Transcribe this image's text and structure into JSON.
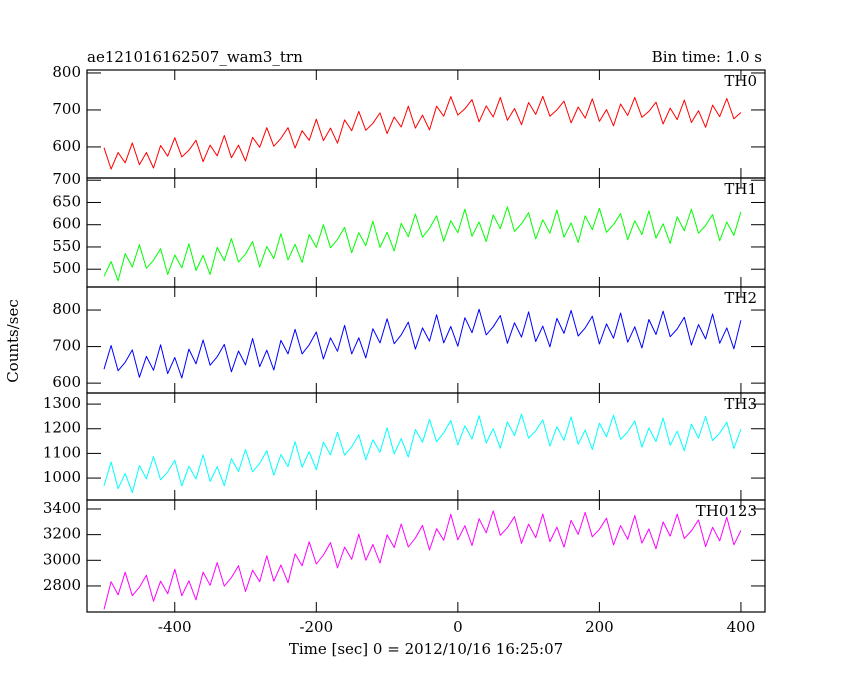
{
  "chart_data": {
    "type": "line",
    "title": "ae121016162507_wam3_trn",
    "subtitle": "Bin time: 1.0 s",
    "xlabel": "Time [sec] 0 = 2012/10/16 16:25:07",
    "ylabel": "Counts/sec",
    "xlim": [
      -524,
      434
    ],
    "xticks": [
      -400,
      -200,
      0,
      200,
      400
    ],
    "x": [
      -500,
      -490,
      -480,
      -470,
      -460,
      -450,
      -440,
      -430,
      -420,
      -410,
      -400,
      -390,
      -380,
      -370,
      -360,
      -350,
      -340,
      -330,
      -320,
      -310,
      -300,
      -290,
      -280,
      -270,
      -260,
      -250,
      -240,
      -230,
      -220,
      -210,
      -200,
      -190,
      -180,
      -170,
      -160,
      -150,
      -140,
      -130,
      -120,
      -110,
      -100,
      -90,
      -80,
      -70,
      -60,
      -50,
      -40,
      -30,
      -20,
      -10,
      0,
      10,
      20,
      30,
      40,
      50,
      60,
      70,
      80,
      90,
      100,
      110,
      120,
      130,
      140,
      150,
      160,
      170,
      180,
      190,
      200,
      210,
      220,
      230,
      240,
      250,
      260,
      270,
      280,
      290,
      300,
      310,
      320,
      330,
      340,
      350,
      360,
      370,
      380,
      390,
      400
    ],
    "panels": [
      {
        "name": "TH0",
        "color": "#ff0000",
        "ylim": [
          516,
          808
        ],
        "yticks": [
          600,
          700,
          800
        ],
        "values": [
          598,
          540,
          585,
          557,
          611,
          552,
          585,
          543,
          604,
          575,
          625,
          573,
          591,
          618,
          560,
          605,
          576,
          631,
          571,
          605,
          562,
          626,
          599,
          652,
          602,
          623,
          652,
          597,
          644,
          618,
          675,
          617,
          651,
          610,
          673,
          644,
          696,
          645,
          664,
          692,
          636,
          681,
          654,
          710,
          651,
          686,
          646,
          710,
          683,
          736,
          686,
          703,
          728,
          668,
          711,
          681,
          734,
          672,
          704,
          660,
          720,
          688,
          737,
          683,
          700,
          724,
          665,
          708,
          678,
          730,
          669,
          701,
          657,
          716,
          685,
          734,
          680,
          696,
          721,
          662,
          705,
          674,
          727,
          666,
          698,
          653,
          713,
          682,
          731,
          676,
          693
        ]
      },
      {
        "name": "TH1",
        "color": "#00ff00",
        "ylim": [
          460,
          705
        ],
        "yticks": [
          500,
          550,
          600,
          650,
          700
        ],
        "values": [
          484,
          517,
          474,
          535,
          505,
          555,
          502,
          520,
          546,
          488,
          532,
          503,
          557,
          497,
          531,
          488,
          549,
          519,
          569,
          516,
          534,
          562,
          505,
          551,
          524,
          580,
          521,
          556,
          515,
          578,
          549,
          600,
          548,
          567,
          594,
          537,
          582,
          553,
          608,
          549,
          583,
          541,
          603,
          573,
          624,
          572,
          592,
          620,
          563,
          609,
          582,
          635,
          574,
          606,
          562,
          622,
          591,
          640,
          585,
          602,
          627,
          568,
          611,
          581,
          633,
          572,
          604,
          560,
          620,
          589,
          637,
          583,
          600,
          625,
          566,
          609,
          578,
          631,
          570,
          602,
          558,
          618,
          586,
          635,
          581,
          598,
          623,
          564,
          606,
          576,
          629
        ]
      },
      {
        "name": "TH2",
        "color": "#0000ff",
        "ylim": [
          573,
          863
        ],
        "yticks": [
          600,
          700,
          800
        ],
        "values": [
          638,
          703,
          634,
          657,
          691,
          616,
          673,
          635,
          705,
          626,
          670,
          614,
          693,
          653,
          718,
          649,
          672,
          706,
          631,
          688,
          650,
          722,
          645,
          690,
          636,
          717,
          680,
          747,
          680,
          705,
          740,
          666,
          724,
          687,
          758,
          680,
          724,
          669,
          749,
          710,
          776,
          708,
          732,
          767,
          693,
          751,
          715,
          787,
          710,
          755,
          701,
          779,
          738,
          802,
          732,
          754,
          785,
          709,
          765,
          726,
          795,
          714,
          756,
          699,
          777,
          736,
          799,
          729,
          751,
          783,
          707,
          762,
          723,
          792,
          712,
          754,
          696,
          774,
          733,
          797,
          727,
          748,
          780,
          704,
          760,
          721,
          789,
          709,
          751,
          694,
          772
        ]
      },
      {
        "name": "TH3",
        "color": "#00ffff",
        "ylim": [
          911,
          1345
        ],
        "yticks": [
          1000,
          1100,
          1200,
          1300
        ],
        "values": [
          968,
          1065,
          957,
          1018,
          941,
          1051,
          997,
          1087,
          993,
          1025,
          1072,
          968,
          1048,
          996,
          1094,
          986,
          1046,
          969,
          1079,
          1026,
          1116,
          1025,
          1060,
          1111,
          1011,
          1095,
          1047,
          1148,
          1044,
          1107,
          1034,
          1146,
          1094,
          1186,
          1093,
          1127,
          1176,
          1074,
          1155,
          1105,
          1204,
          1098,
          1160,
          1085,
          1197,
          1145,
          1238,
          1147,
          1183,
          1234,
          1134,
          1212,
          1158,
          1253,
          1142,
          1200,
          1121,
          1228,
          1172,
          1259,
          1162,
          1192,
          1236,
          1130,
          1208,
          1153,
          1248,
          1137,
          1195,
          1116,
          1223,
          1167,
          1255,
          1157,
          1187,
          1232,
          1125,
          1203,
          1148,
          1243,
          1133,
          1190,
          1111,
          1219,
          1162,
          1250,
          1152,
          1182,
          1227,
          1120,
          1198
        ]
      },
      {
        "name": "TH0123",
        "color": "#ff00ff",
        "ylim": [
          2597,
          3470
        ],
        "yticks": [
          2800,
          3000,
          3200,
          3400
        ],
        "values": [
          2617,
          2833,
          2730,
          2907,
          2724,
          2790,
          2883,
          2681,
          2838,
          2739,
          2931,
          2723,
          2840,
          2692,
          2908,
          2805,
          2982,
          2799,
          2865,
          2958,
          2757,
          2923,
          2833,
          3035,
          2836,
          2964,
          2825,
          3050,
          2957,
          3144,
          2971,
          3041,
          3138,
          2941,
          3103,
          3008,
          3204,
          3000,
          3123,
          2979,
          3199,
          3100,
          3283,
          3104,
          3174,
          3272,
          3080,
          3246,
          3157,
          3358,
          3159,
          3270,
          3115,
          3324,
          3214,
          3385,
          3195,
          3254,
          3340,
          3132,
          3282,
          3176,
          3361,
          3146,
          3258,
          3103,
          3312,
          3202,
          3373,
          3183,
          3242,
          3328,
          3120,
          3270,
          3164,
          3349,
          3134,
          3245,
          3090,
          3299,
          3189,
          3360,
          3170,
          3229,
          3315,
          3107,
          3257,
          3151,
          3336,
          3121,
          3232
        ]
      }
    ]
  }
}
